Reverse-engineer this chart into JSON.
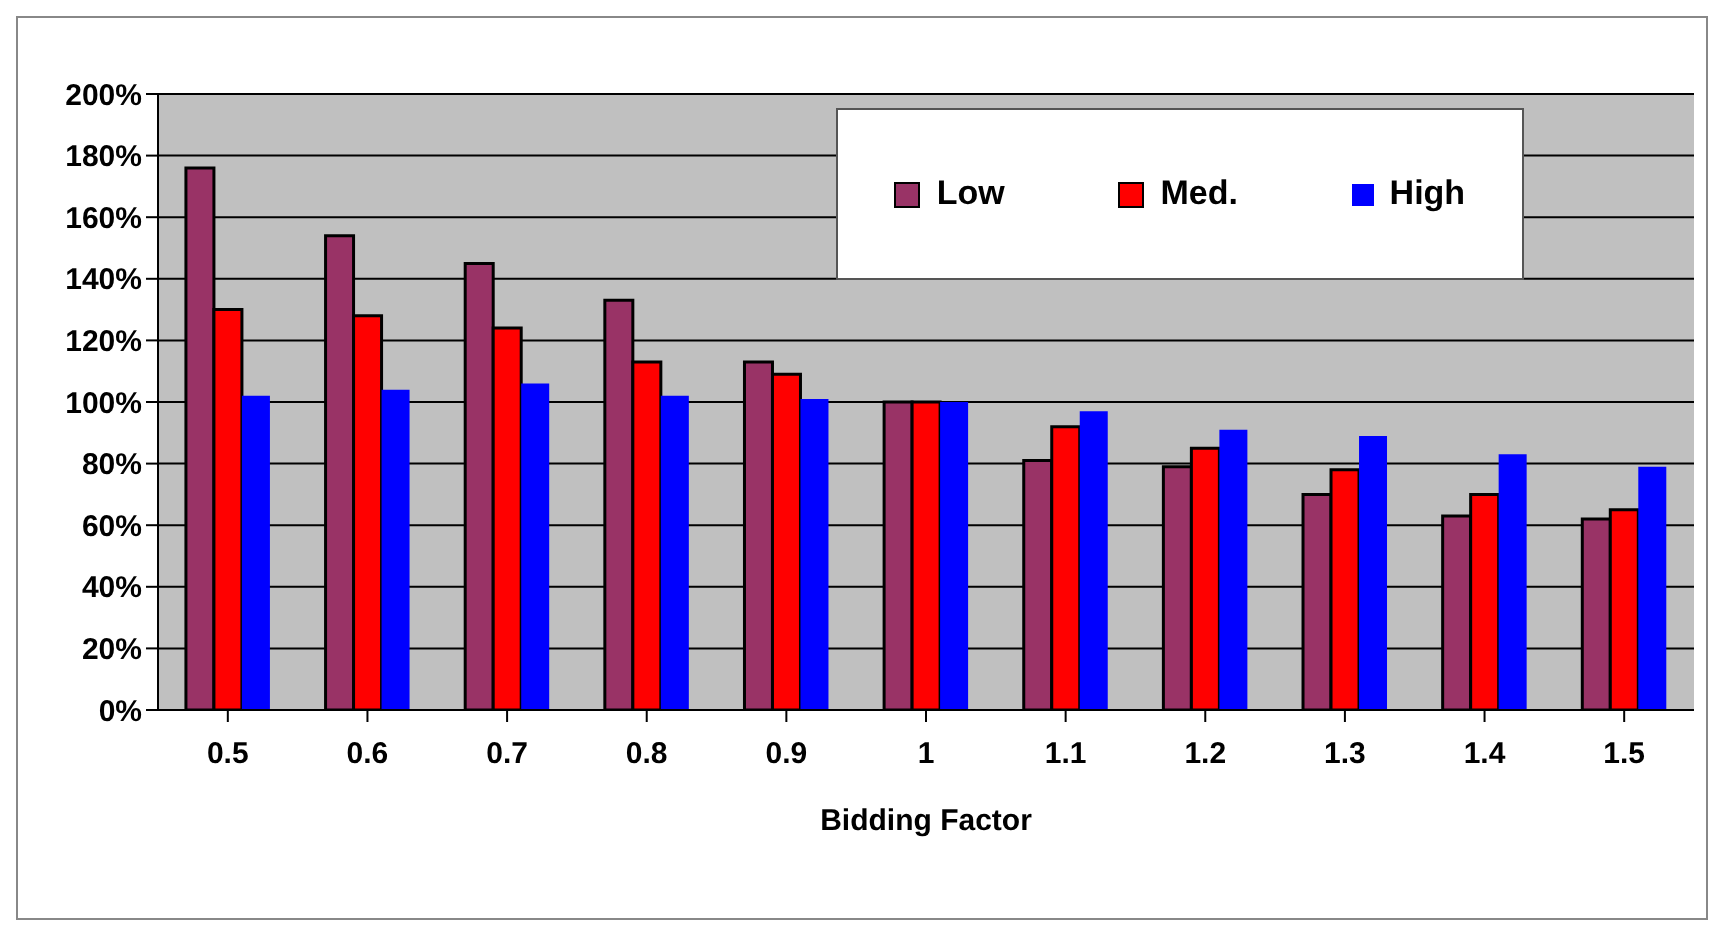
{
  "chart_data": {
    "type": "bar",
    "xlabel": "Bidding Factor",
    "categories": [
      "0.5",
      "0.6",
      "0.7",
      "0.8",
      "0.9",
      "1",
      "1.1",
      "1.2",
      "1.3",
      "1.4",
      "1.5"
    ],
    "series": [
      {
        "name": "Low",
        "color": "#993366",
        "values": [
          176,
          154,
          145,
          133,
          113,
          100,
          81,
          79,
          70,
          63,
          62
        ]
      },
      {
        "name": "Med.",
        "color": "#ff0000",
        "values": [
          130,
          128,
          124,
          113,
          109,
          100,
          92,
          85,
          78,
          70,
          65
        ]
      },
      {
        "name": "High",
        "color": "#0000ff",
        "values": [
          102,
          104,
          106,
          102,
          101,
          100,
          97,
          91,
          89,
          83,
          79
        ]
      }
    ],
    "ylim": [
      0,
      200
    ],
    "yticks": [
      {
        "value": 0,
        "label": "0%"
      },
      {
        "value": 20,
        "label": "20%"
      },
      {
        "value": 40,
        "label": "40%"
      },
      {
        "value": 60,
        "label": "60%"
      },
      {
        "value": 80,
        "label": "80%"
      },
      {
        "value": 100,
        "label": "100%"
      },
      {
        "value": 120,
        "label": "120%"
      },
      {
        "value": 140,
        "label": "140%"
      },
      {
        "value": 160,
        "label": "160%"
      },
      {
        "value": 180,
        "label": "180%"
      },
      {
        "value": 200,
        "label": "200%"
      }
    ],
    "grid": "y",
    "legend": "top right"
  }
}
